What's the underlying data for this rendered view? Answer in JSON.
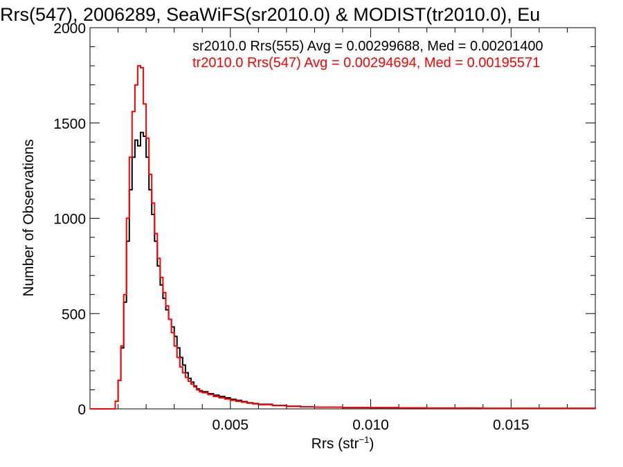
{
  "chart_data": {
    "type": "line",
    "title": "Rrs(547), 2006289, SeaWiFS(sr2010.0) & MODIST(tr2010.0), Eu",
    "xlabel_base": "Rrs (str",
    "xlabel_sup": "−1",
    "xlabel_close": ")",
    "ylabel": "Number of Observations",
    "xlim": [
      0.0,
      0.018
    ],
    "ylim": [
      0,
      2000
    ],
    "x_ticks": [
      {
        "value": 0.005,
        "label": "0.005"
      },
      {
        "value": 0.01,
        "label": "0.010"
      },
      {
        "value": 0.015,
        "label": "0.015"
      }
    ],
    "y_ticks": [
      {
        "value": 0,
        "label": "0"
      },
      {
        "value": 500,
        "label": "500"
      },
      {
        "value": 1000,
        "label": "1000"
      },
      {
        "value": 1500,
        "label": "1500"
      },
      {
        "value": 2000,
        "label": "2000"
      }
    ],
    "annotations": [
      {
        "text": "sr2010.0 Rrs(555) Avg = 0.00299688, Med = 0.00201400",
        "color": "#000000"
      },
      {
        "text": "tr2010.0 Rrs(547) Avg = 0.00294694, Med = 0.00195571",
        "color": "#ff0000"
      }
    ],
    "series": [
      {
        "color": "#000000",
        "points": [
          [
            0.0,
            0
          ],
          [
            0.0008,
            0
          ],
          [
            0.0009,
            40
          ],
          [
            0.001,
            150
          ],
          [
            0.0011,
            320
          ],
          [
            0.0012,
            560
          ],
          [
            0.0013,
            880
          ],
          [
            0.0014,
            1150
          ],
          [
            0.0015,
            1320
          ],
          [
            0.0016,
            1410
          ],
          [
            0.0017,
            1380
          ],
          [
            0.0018,
            1450
          ],
          [
            0.0019,
            1430
          ],
          [
            0.002,
            1320
          ],
          [
            0.0021,
            1150
          ],
          [
            0.0022,
            1020
          ],
          [
            0.0023,
            880
          ],
          [
            0.0024,
            750
          ],
          [
            0.0025,
            650
          ],
          [
            0.0026,
            580
          ],
          [
            0.0027,
            520
          ],
          [
            0.0028,
            470
          ],
          [
            0.0029,
            430
          ],
          [
            0.003,
            380
          ],
          [
            0.0031,
            320
          ],
          [
            0.0032,
            270
          ],
          [
            0.0033,
            230
          ],
          [
            0.0034,
            190
          ],
          [
            0.0035,
            160
          ],
          [
            0.0036,
            140
          ],
          [
            0.0037,
            120
          ],
          [
            0.0038,
            105
          ],
          [
            0.0039,
            95
          ],
          [
            0.004,
            90
          ],
          [
            0.0042,
            80
          ],
          [
            0.0044,
            72
          ],
          [
            0.0046,
            65
          ],
          [
            0.0048,
            58
          ],
          [
            0.005,
            50
          ],
          [
            0.0052,
            45
          ],
          [
            0.0054,
            38
          ],
          [
            0.0056,
            32
          ],
          [
            0.0058,
            28
          ],
          [
            0.006,
            24
          ],
          [
            0.0065,
            18
          ],
          [
            0.007,
            14
          ],
          [
            0.0075,
            11
          ],
          [
            0.008,
            9
          ],
          [
            0.009,
            7
          ],
          [
            0.01,
            6
          ],
          [
            0.011,
            5
          ],
          [
            0.012,
            4
          ],
          [
            0.013,
            4
          ],
          [
            0.014,
            3
          ],
          [
            0.015,
            3
          ],
          [
            0.016,
            3
          ],
          [
            0.017,
            3
          ],
          [
            0.018,
            2
          ]
        ]
      },
      {
        "color": "#ff0000",
        "points": [
          [
            0.0,
            0
          ],
          [
            0.0008,
            0
          ],
          [
            0.0009,
            40
          ],
          [
            0.001,
            150
          ],
          [
            0.0011,
            330
          ],
          [
            0.0012,
            600
          ],
          [
            0.0013,
            1000
          ],
          [
            0.0014,
            1320
          ],
          [
            0.0015,
            1560
          ],
          [
            0.0016,
            1700
          ],
          [
            0.0017,
            1800
          ],
          [
            0.0018,
            1790
          ],
          [
            0.0019,
            1600
          ],
          [
            0.002,
            1420
          ],
          [
            0.0021,
            1230
          ],
          [
            0.0022,
            1080
          ],
          [
            0.0023,
            920
          ],
          [
            0.0024,
            790
          ],
          [
            0.0025,
            690
          ],
          [
            0.0026,
            610
          ],
          [
            0.0027,
            540
          ],
          [
            0.0028,
            470
          ],
          [
            0.0029,
            400
          ],
          [
            0.003,
            330
          ],
          [
            0.0031,
            270
          ],
          [
            0.0032,
            220
          ],
          [
            0.0033,
            190
          ],
          [
            0.0034,
            165
          ],
          [
            0.0035,
            145
          ],
          [
            0.0036,
            130
          ],
          [
            0.0037,
            115
          ],
          [
            0.0038,
            100
          ],
          [
            0.0039,
            90
          ],
          [
            0.004,
            85
          ],
          [
            0.0042,
            75
          ],
          [
            0.0044,
            65
          ],
          [
            0.0046,
            58
          ],
          [
            0.0048,
            52
          ],
          [
            0.005,
            45
          ],
          [
            0.0052,
            40
          ],
          [
            0.0054,
            35
          ],
          [
            0.0056,
            30
          ],
          [
            0.0058,
            26
          ],
          [
            0.006,
            22
          ],
          [
            0.0065,
            17
          ],
          [
            0.007,
            13
          ],
          [
            0.0075,
            11
          ],
          [
            0.008,
            9
          ],
          [
            0.009,
            7
          ],
          [
            0.01,
            6
          ],
          [
            0.011,
            5
          ],
          [
            0.012,
            4
          ],
          [
            0.013,
            4
          ],
          [
            0.014,
            3
          ],
          [
            0.015,
            3
          ],
          [
            0.016,
            3
          ],
          [
            0.017,
            3
          ],
          [
            0.018,
            2
          ]
        ]
      }
    ]
  }
}
